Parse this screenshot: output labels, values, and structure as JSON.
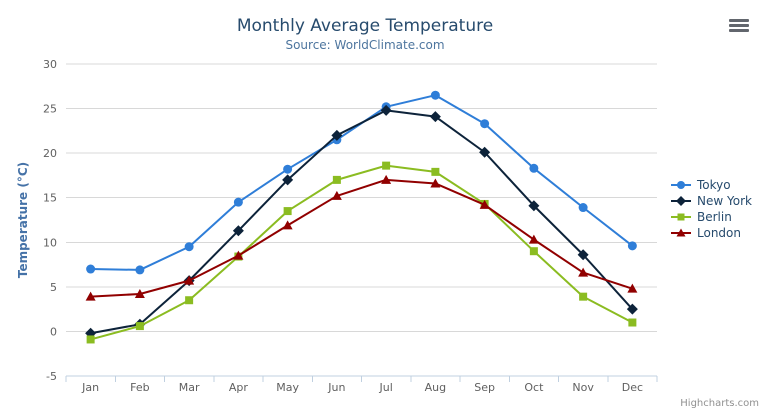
{
  "chart_data": {
    "type": "line",
    "title": "Monthly Average Temperature",
    "subtitle": "Source: WorldClimate.com",
    "categories": [
      "Jan",
      "Feb",
      "Mar",
      "Apr",
      "May",
      "Jun",
      "Jul",
      "Aug",
      "Sep",
      "Oct",
      "Nov",
      "Dec"
    ],
    "xlabel": "",
    "ylabel": "Temperature (°C)",
    "ylim": [
      -5,
      30
    ],
    "ytick_step": 5,
    "yticks": [
      -5,
      0,
      5,
      10,
      15,
      20,
      25,
      30
    ],
    "grid": true,
    "legend_position": "right-middle-vertical",
    "series": [
      {
        "name": "Tokyo",
        "color": "#2f7ed8",
        "marker": "circle",
        "values": [
          7.0,
          6.9,
          9.5,
          14.5,
          18.2,
          21.5,
          25.2,
          26.5,
          23.3,
          18.3,
          13.9,
          9.6
        ]
      },
      {
        "name": "New York",
        "color": "#0d233a",
        "marker": "diamond",
        "values": [
          -0.2,
          0.8,
          5.7,
          11.3,
          17.0,
          22.0,
          24.8,
          24.1,
          20.1,
          14.1,
          8.6,
          2.5
        ]
      },
      {
        "name": "Berlin",
        "color": "#8bbc21",
        "marker": "square",
        "values": [
          -0.9,
          0.6,
          3.5,
          8.4,
          13.5,
          17.0,
          18.6,
          17.9,
          14.3,
          9.0,
          3.9,
          1.0
        ]
      },
      {
        "name": "London",
        "color": "#910000",
        "marker": "triangle",
        "values": [
          3.9,
          4.2,
          5.7,
          8.5,
          11.9,
          15.2,
          17.0,
          16.6,
          14.2,
          10.3,
          6.6,
          4.8
        ]
      }
    ]
  },
  "export_menu": {
    "icon": "hamburger-menu-icon"
  },
  "credits": {
    "label": "Highcharts.com"
  },
  "colors": {
    "background": "#ffffff",
    "title": "#274b6d",
    "subtitle": "#4d759e",
    "axis_labels": "#606060",
    "axis_title": "#4572a7",
    "gridline": "#d8d8d8",
    "axis_line": "#c0d0e0",
    "legend_text": "#274b6d",
    "credits_text": "#909090",
    "export_icon": "#62666d"
  }
}
